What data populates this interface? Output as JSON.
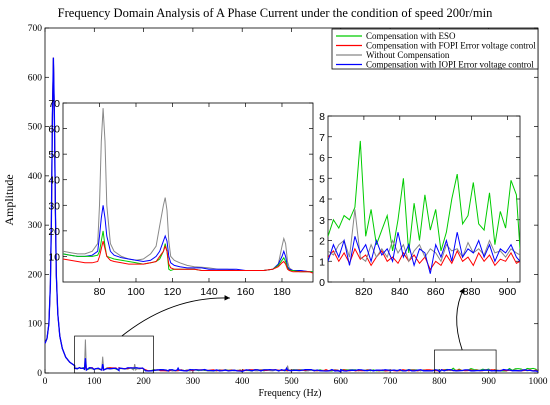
{
  "chart_data": {
    "type": "line",
    "title": "Frequency Domain Analysis of  A Phase  Current under the condition of speed 200r/min",
    "xlabel": "Frequency (Hz)",
    "ylabel": "Amplitude",
    "xlim": [
      0,
      1000
    ],
    "ylim": [
      0,
      700
    ],
    "xticks": [
      0,
      100,
      200,
      300,
      400,
      500,
      600,
      700,
      800,
      900,
      1000
    ],
    "yticks": [
      0,
      100,
      200,
      300,
      400,
      500,
      600,
      700
    ],
    "grid": false,
    "legend_position": "top-right",
    "series": [
      {
        "name": "Compensation with ESO",
        "color": "#00cc00"
      },
      {
        "name": "Compensation with FOPI Error voltage control",
        "color": "#ff0000"
      },
      {
        "name": "Without Compensation",
        "color": "#888888"
      },
      {
        "name": "Compensation with IOPI Error voltage control",
        "color": "#0000ff"
      }
    ],
    "main_peak": {
      "x": 17,
      "y": 640
    },
    "main_curve": [
      {
        "x": 0,
        "y": 60
      },
      {
        "x": 4,
        "y": 70
      },
      {
        "x": 8,
        "y": 100
      },
      {
        "x": 11,
        "y": 180
      },
      {
        "x": 13,
        "y": 310
      },
      {
        "x": 15,
        "y": 520
      },
      {
        "x": 17,
        "y": 640
      },
      {
        "x": 19,
        "y": 520
      },
      {
        "x": 21,
        "y": 330
      },
      {
        "x": 23,
        "y": 200
      },
      {
        "x": 26,
        "y": 120
      },
      {
        "x": 30,
        "y": 75
      },
      {
        "x": 35,
        "y": 50
      },
      {
        "x": 42,
        "y": 32
      },
      {
        "x": 50,
        "y": 22
      },
      {
        "x": 60,
        "y": 15
      },
      {
        "x": 70,
        "y": 11
      },
      {
        "x": 80,
        "y": 9
      },
      {
        "x": 100,
        "y": 7
      },
      {
        "x": 150,
        "y": 5
      },
      {
        "x": 250,
        "y": 4
      },
      {
        "x": 400,
        "y": 3.5
      },
      {
        "x": 600,
        "y": 3
      },
      {
        "x": 800,
        "y": 2.8
      },
      {
        "x": 1000,
        "y": 2.5
      }
    ],
    "main_harmonics": [
      {
        "x": 82,
        "y": 68,
        "series": "Without Compensation"
      },
      {
        "x": 117,
        "y": 33,
        "series": "Without Compensation"
      },
      {
        "x": 182,
        "y": 18,
        "series": "Without Compensation"
      },
      {
        "x": 82,
        "y": 30,
        "series": "Compensation with IOPI Error voltage control"
      },
      {
        "x": 117,
        "y": 18,
        "series": "Compensation with IOPI Error voltage control"
      },
      {
        "x": 82,
        "y": 16,
        "series": "Compensation with FOPI Error voltage control"
      },
      {
        "x": 117,
        "y": 14,
        "series": "Compensation with FOPI Error voltage control"
      },
      {
        "x": 82,
        "y": 20,
        "series": "Compensation with ESO"
      },
      {
        "x": 117,
        "y": 15,
        "series": "Compensation with ESO"
      },
      {
        "x": 270,
        "y": 10,
        "series": "Compensation with IOPI Error voltage control"
      },
      {
        "x": 490,
        "y": 10,
        "series": "Compensation with IOPI Error voltage control"
      },
      {
        "x": 492,
        "y": 15,
        "series": "Without Compensation"
      }
    ],
    "insets": [
      {
        "name": "inset-left",
        "xlim": [
          60,
          197
        ],
        "ylim": [
          0,
          70
        ],
        "xticks": [
          80,
          100,
          120,
          140,
          160,
          180
        ],
        "yticks": [
          10,
          20,
          30,
          40,
          50,
          60,
          70
        ],
        "source_box": {
          "xlim": [
            60,
            220
          ],
          "ylim": [
            0,
            75
          ]
        },
        "x": [
          60,
          64,
          68,
          72,
          76,
          79,
          80,
          81,
          82,
          83,
          84,
          86,
          88,
          92,
          96,
          100,
          104,
          108,
          111,
          113,
          115,
          116,
          117,
          118,
          119,
          121,
          124,
          128,
          132,
          136,
          140,
          145,
          150,
          155,
          160,
          165,
          170,
          175,
          178,
          180,
          181,
          182,
          183,
          184,
          186,
          190,
          195,
          197
        ],
        "series": [
          {
            "name": "Without Compensation",
            "values": [
              12,
              11.5,
              11,
              11,
              12,
              15,
              30,
              55,
              68,
              55,
              30,
              15,
              12,
              10,
              9,
              8.5,
              9,
              11,
              14,
              22,
              30,
              33,
              28,
              16,
              10,
              8.5,
              7.5,
              6.5,
              6,
              5.8,
              5.5,
              5,
              5,
              4.5,
              4.5,
              4.5,
              4.5,
              5,
              7,
              14,
              17,
              15,
              8,
              5.5,
              4.5,
              4.5,
              4,
              4
            ]
          },
          {
            "name": "Compensation with IOPI Error voltage control",
            "values": [
              11,
              10.5,
              10,
              10,
              10.5,
              12,
              18,
              25,
              30,
              25,
              18,
              12,
              10.5,
              9.5,
              9,
              8.5,
              8,
              8.5,
              10,
              12,
              16,
              18,
              16,
              10,
              7.5,
              6.5,
              6,
              5.5,
              5.5,
              5.5,
              5,
              5,
              5,
              5,
              4.5,
              4.5,
              4.5,
              5,
              7,
              10,
              12,
              10,
              6,
              5,
              4.5,
              4.5,
              4,
              4
            ]
          },
          {
            "name": "Compensation with ESO",
            "values": [
              11,
              10.5,
              10,
              10,
              10,
              10.5,
              12,
              16,
              20,
              14,
              10,
              9.5,
              9,
              8.5,
              8,
              7.5,
              7,
              7.5,
              8,
              9,
              12,
              15,
              12,
              5,
              4.5,
              5,
              5,
              5,
              5,
              4.5,
              4.5,
              4.5,
              4.5,
              4.5,
              4.5,
              4.5,
              4.5,
              5,
              6.5,
              8.5,
              9.5,
              8,
              5.5,
              4.5,
              4.5,
              4,
              4,
              4
            ]
          },
          {
            "name": "Compensation with FOPI Error voltage control",
            "values": [
              9,
              8.5,
              8,
              7.5,
              7.5,
              8,
              10,
              13,
              16,
              13,
              10,
              8.5,
              8,
              7.5,
              7,
              7,
              7,
              7.5,
              8,
              10,
              12,
              14,
              12,
              7,
              5.5,
              5,
              5,
              5,
              5,
              4.5,
              4.5,
              4.5,
              4.5,
              4.5,
              4.5,
              4.5,
              4.5,
              5,
              6,
              7.5,
              8,
              7,
              5,
              4.5,
              4,
              4,
              4,
              3.5
            ]
          }
        ]
      },
      {
        "name": "inset-right",
        "xlim": [
          800,
          907
        ],
        "ylim": [
          0,
          8
        ],
        "xticks": [
          820,
          840,
          860,
          880,
          900
        ],
        "yticks": [
          0,
          1,
          2,
          3,
          4,
          5,
          6,
          7,
          8
        ],
        "source_box": {
          "xlim": [
            790,
            915
          ],
          "ylim": [
            0,
            8
          ]
        },
        "x": [
          800,
          803,
          806,
          809,
          812,
          815,
          818,
          821,
          824,
          827,
          830,
          833,
          836,
          839,
          842,
          845,
          848,
          851,
          854,
          857,
          860,
          863,
          866,
          869,
          872,
          875,
          878,
          881,
          884,
          887,
          890,
          893,
          896,
          899,
          902,
          905,
          907
        ],
        "series": [
          {
            "name": "Compensation with ESO",
            "values": [
              2.2,
              3.0,
              2.6,
              3.2,
              3.0,
              3.6,
              6.8,
              2.2,
              3.5,
              1.8,
              2.5,
              3.2,
              1.5,
              3.0,
              5.0,
              1.4,
              3.8,
              2.0,
              4.2,
              2.5,
              3.5,
              1.5,
              2.4,
              4.0,
              5.2,
              2.8,
              3.2,
              4.8,
              2.8,
              2.5,
              4.3,
              1.8,
              3.4,
              2.6,
              4.9,
              4.2,
              1.6
            ]
          },
          {
            "name": "Compensation with FOPI Error voltage control",
            "values": [
              1.2,
              1.5,
              1.0,
              1.4,
              0.9,
              1.6,
              1.1,
              1.3,
              0.8,
              1.2,
              1.5,
              1.0,
              1.2,
              0.9,
              1.4,
              1.0,
              1.3,
              0.9,
              1.2,
              0.6,
              1.0,
              0.8,
              1.3,
              0.9,
              1.5,
              1.0,
              1.2,
              0.8,
              1.4,
              1.0,
              1.3,
              0.8,
              1.1,
              1.0,
              1.4,
              0.9,
              1.0
            ]
          },
          {
            "name": "Without Compensation",
            "values": [
              1.5,
              1.3,
              1.8,
              2.0,
              1.2,
              3.5,
              1.2,
              1.0,
              1.8,
              1.2,
              1.6,
              1.2,
              2.0,
              1.4,
              1.8,
              1.0,
              1.5,
              1.8,
              1.2,
              1.6,
              1.4,
              1.0,
              1.8,
              1.5,
              1.6,
              1.2,
              1.9,
              1.4,
              1.6,
              1.3,
              2.0,
              1.4,
              1.5,
              1.2,
              1.6,
              1.4,
              1.3
            ]
          },
          {
            "name": "Compensation with IOPI Error voltage control",
            "values": [
              1.0,
              1.8,
              1.2,
              2.0,
              0.8,
              2.2,
              1.4,
              1.8,
              1.0,
              2.0,
              1.3,
              1.6,
              1.0,
              2.4,
              1.2,
              1.8,
              0.8,
              1.6,
              1.4,
              0.4,
              1.8,
              1.2,
              2.0,
              1.0,
              2.4,
              1.2,
              1.6,
              1.4,
              2.0,
              1.2,
              1.8,
              1.0,
              1.6,
              1.4,
              1.8,
              1.2,
              1.0
            ]
          }
        ]
      }
    ]
  }
}
